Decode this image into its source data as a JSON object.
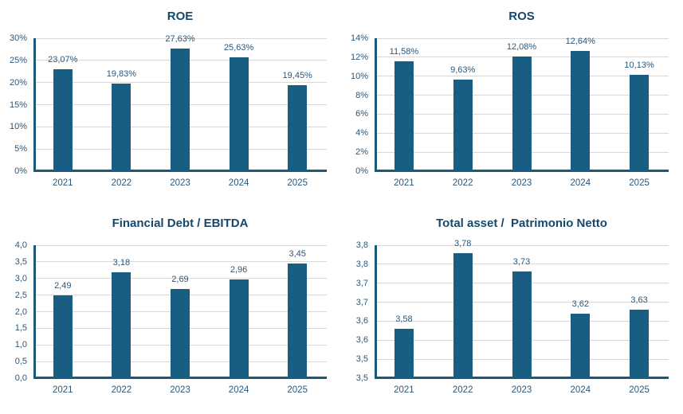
{
  "colors": {
    "bar_fill": "#175E82",
    "title_text": "#17486B",
    "label_text": "#2A587B",
    "gridline": "#D9D9D9",
    "axis_line": "#1A5A78",
    "background": "#FFFFFF"
  },
  "chart_data": [
    {
      "id": "roe",
      "type": "bar",
      "title": "ROE",
      "categories": [
        "2021",
        "2022",
        "2023",
        "2024",
        "2025"
      ],
      "values": [
        23.07,
        19.83,
        27.63,
        25.63,
        19.45
      ],
      "value_labels": [
        "23,07%",
        "19,83%",
        "27,63%",
        "25,63%",
        "19,45%"
      ],
      "xlabel": "",
      "ylabel": "",
      "ylim": [
        0,
        30
      ],
      "ytick_labels_top_to_bottom": [
        "30%",
        "25%",
        "20%",
        "15%",
        "10%",
        "5%",
        "0%"
      ],
      "grid": true,
      "legend": null
    },
    {
      "id": "ros",
      "type": "bar",
      "title": "ROS",
      "categories": [
        "2021",
        "2022",
        "2023",
        "2024",
        "2025"
      ],
      "values": [
        11.58,
        9.63,
        12.08,
        12.64,
        10.13
      ],
      "value_labels": [
        "11,58%",
        "9,63%",
        "12,08%",
        "12,64%",
        "10,13%"
      ],
      "xlabel": "",
      "ylabel": "",
      "ylim": [
        0,
        14
      ],
      "ytick_labels_top_to_bottom": [
        "14%",
        "12%",
        "10%",
        "8%",
        "6%",
        "4%",
        "2%",
        "0%"
      ],
      "grid": true,
      "legend": null
    },
    {
      "id": "financial-debt-ebitda",
      "type": "bar",
      "title": "Financial Debt / EBITDA",
      "categories": [
        "2021",
        "2022",
        "2023",
        "2024",
        "2025"
      ],
      "values": [
        2.49,
        3.18,
        2.69,
        2.96,
        3.45
      ],
      "value_labels": [
        "2,49",
        "3,18",
        "2,69",
        "2,96",
        "3,45"
      ],
      "xlabel": "",
      "ylabel": "",
      "ylim": [
        0,
        4
      ],
      "ytick_labels_top_to_bottom": [
        "4,0",
        "3,5",
        "3,0",
        "2,5",
        "2,0",
        "1,5",
        "1,0",
        "0,5",
        "0,0"
      ],
      "grid": true,
      "legend": null
    },
    {
      "id": "total-asset-patrimonio-netto",
      "type": "bar",
      "title": "Total asset /  Patrimonio Netto",
      "categories": [
        "2021",
        "2022",
        "2023",
        "2024",
        "2025"
      ],
      "values": [
        3.58,
        3.78,
        3.73,
        3.62,
        3.63
      ],
      "value_labels": [
        "3,58",
        "3,78",
        "3,73",
        "3,62",
        "3,63"
      ],
      "xlabel": "",
      "ylabel": "",
      "ylim": [
        3.45,
        3.8
      ],
      "ytick_labels_top_to_bottom": [
        "3,8",
        "3,8",
        "3,7",
        "3,7",
        "3,6",
        "3,6",
        "3,5",
        "3,5"
      ],
      "grid": true,
      "legend": null
    }
  ]
}
